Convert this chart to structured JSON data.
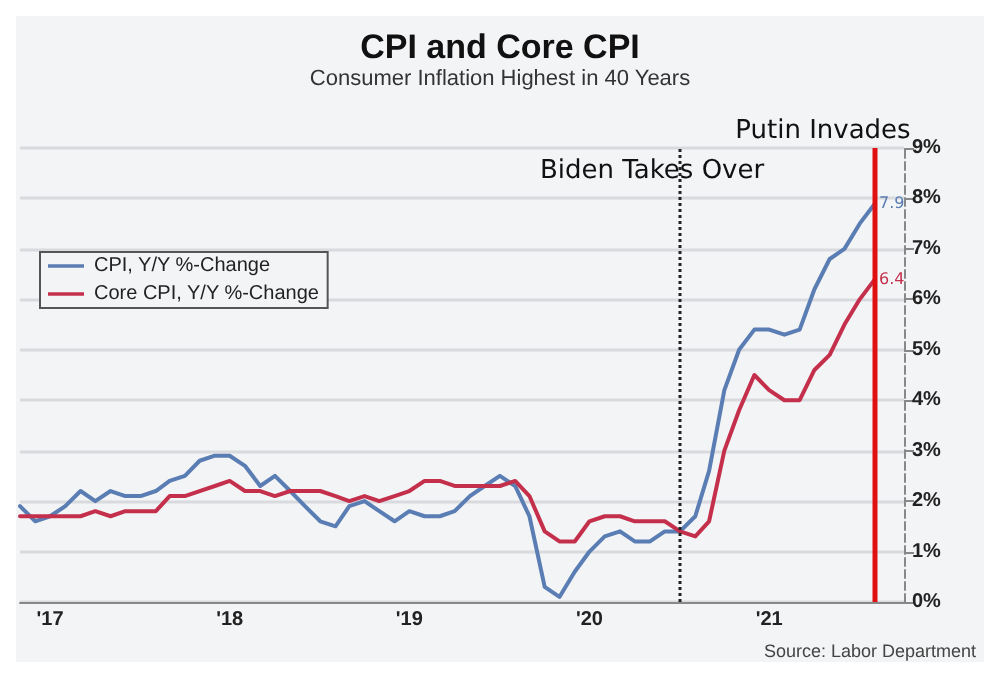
{
  "chart_data": {
    "type": "line",
    "title": "CPI and Core CPI",
    "subtitle": "Consumer Inflation Highest in 40 Years",
    "x": [
      "2017-05",
      "2017-06",
      "2017-07",
      "2017-08",
      "2017-09",
      "2017-10",
      "2017-11",
      "2017-12",
      "2018-01",
      "2018-02",
      "2018-03",
      "2018-04",
      "2018-05",
      "2018-06",
      "2018-07",
      "2018-08",
      "2018-09",
      "2018-10",
      "2018-11",
      "2018-12",
      "2019-01",
      "2019-02",
      "2019-03",
      "2019-04",
      "2019-05",
      "2019-06",
      "2019-07",
      "2019-08",
      "2019-09",
      "2019-10",
      "2019-11",
      "2019-12",
      "2020-01",
      "2020-02",
      "2020-03",
      "2020-04",
      "2020-05",
      "2020-06",
      "2020-07",
      "2020-08",
      "2020-09",
      "2020-10",
      "2020-11",
      "2020-12",
      "2021-01",
      "2021-02",
      "2021-03",
      "2021-04",
      "2021-05",
      "2021-06",
      "2021-07",
      "2021-08",
      "2021-09",
      "2021-10",
      "2021-11",
      "2021-12",
      "2022-01",
      "2022-02"
    ],
    "series": [
      {
        "name": "CPI, Y/Y %-Change",
        "color": "#5a7db3",
        "values": [
          1.9,
          1.6,
          1.7,
          1.9,
          2.2,
          2.0,
          2.2,
          2.1,
          2.1,
          2.2,
          2.4,
          2.5,
          2.8,
          2.9,
          2.9,
          2.7,
          2.3,
          2.5,
          2.2,
          1.9,
          1.6,
          1.5,
          1.9,
          2.0,
          1.8,
          1.6,
          1.8,
          1.7,
          1.7,
          1.8,
          2.1,
          2.3,
          2.5,
          2.3,
          1.7,
          0.3,
          0.1,
          0.6,
          1.0,
          1.3,
          1.4,
          1.2,
          1.2,
          1.4,
          1.4,
          1.7,
          2.6,
          4.2,
          5.0,
          5.4,
          5.4,
          5.3,
          5.4,
          6.2,
          6.8,
          7.0,
          7.5,
          7.9
        ],
        "value_labels": [
          null,
          null,
          null,
          null,
          null,
          null,
          null,
          null,
          null,
          null,
          null,
          null,
          null,
          null,
          null,
          null,
          null,
          null,
          null,
          null,
          null,
          null,
          null,
          null,
          null,
          null,
          null,
          null,
          null,
          null,
          null,
          null,
          null,
          null,
          null,
          null,
          null,
          null,
          null,
          null,
          null,
          null,
          null,
          null,
          null,
          null,
          null,
          null,
          null,
          null,
          null,
          null,
          null,
          null,
          null,
          null,
          null,
          "7.9"
        ]
      },
      {
        "name": "Core CPI, Y/Y %-Change",
        "color": "#c4304c",
        "values": [
          1.7,
          1.7,
          1.7,
          1.7,
          1.7,
          1.8,
          1.7,
          1.8,
          1.8,
          1.8,
          2.1,
          2.1,
          2.2,
          2.3,
          2.4,
          2.2,
          2.2,
          2.1,
          2.2,
          2.2,
          2.2,
          2.1,
          2.0,
          2.1,
          2.0,
          2.1,
          2.2,
          2.4,
          2.4,
          2.3,
          2.3,
          2.3,
          2.3,
          2.4,
          2.1,
          1.4,
          1.2,
          1.2,
          1.6,
          1.7,
          1.7,
          1.6,
          1.6,
          1.6,
          1.4,
          1.3,
          1.6,
          3.0,
          3.8,
          4.5,
          4.2,
          4.0,
          4.0,
          4.6,
          4.9,
          5.5,
          6.0,
          6.4
        ],
        "value_labels": [
          null,
          null,
          null,
          null,
          null,
          null,
          null,
          null,
          null,
          null,
          null,
          null,
          null,
          null,
          null,
          null,
          null,
          null,
          null,
          null,
          null,
          null,
          null,
          null,
          null,
          null,
          null,
          null,
          null,
          null,
          null,
          null,
          null,
          null,
          null,
          null,
          null,
          null,
          null,
          null,
          null,
          null,
          null,
          null,
          null,
          null,
          null,
          null,
          null,
          null,
          null,
          null,
          null,
          null,
          null,
          null,
          null,
          "6.4"
        ]
      }
    ],
    "xlim": [
      "2017-05",
      "2022-04"
    ],
    "xticks": [
      {
        "value": "2017-07",
        "label": "'17"
      },
      {
        "value": "2018-07",
        "label": "'18"
      },
      {
        "value": "2019-07",
        "label": "'19"
      },
      {
        "value": "2020-07",
        "label": "'20"
      },
      {
        "value": "2021-07",
        "label": "'21"
      }
    ],
    "ylim": [
      0,
      9
    ],
    "yticks": [
      {
        "value": 0,
        "label": "0%"
      },
      {
        "value": 1,
        "label": "1%"
      },
      {
        "value": 2,
        "label": "2%"
      },
      {
        "value": 3,
        "label": "3%"
      },
      {
        "value": 4,
        "label": "4%"
      },
      {
        "value": 5,
        "label": "5%"
      },
      {
        "value": 6,
        "label": "6%"
      },
      {
        "value": 7,
        "label": "7%"
      },
      {
        "value": 8,
        "label": "8%"
      },
      {
        "value": 9,
        "label": "9%"
      }
    ],
    "ref_lines": [
      {
        "axis": "x",
        "value": "2021-01",
        "label": "Biden Takes Over",
        "color": "#222222",
        "line_style": "dotted"
      },
      {
        "axis": "x",
        "value": "2022-02",
        "label": "Putin Invades",
        "color": "#e01010",
        "line_style": "solid"
      }
    ],
    "annotations": [
      "Source: Labor Department"
    ],
    "grid": "y",
    "legend": "left",
    "marker": "none",
    "line_style": "solid"
  }
}
